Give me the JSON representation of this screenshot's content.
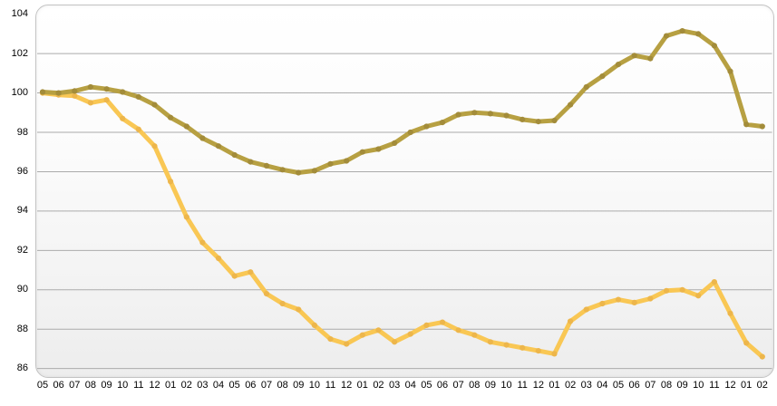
{
  "chart_data": {
    "type": "line",
    "title": "",
    "xlabel": "",
    "ylabel": "",
    "x_labels": [
      "05",
      "06",
      "07",
      "08",
      "09",
      "10",
      "11",
      "12",
      "01",
      "02",
      "03",
      "04",
      "05",
      "06",
      "07",
      "08",
      "09",
      "10",
      "11",
      "12",
      "01",
      "02",
      "03",
      "04",
      "05",
      "06",
      "07",
      "08",
      "09",
      "10",
      "11",
      "12",
      "01",
      "02",
      "03",
      "04",
      "05",
      "06",
      "07",
      "08",
      "09",
      "10",
      "11",
      "12",
      "01",
      "02"
    ],
    "y_axis": {
      "min": 86,
      "max": 104,
      "step": 2
    },
    "ylim": [
      86,
      104
    ],
    "grid": true,
    "legend_position": "none",
    "series": [
      {
        "name": "lower-light-yellow-line",
        "color": "#f9c754",
        "marker_color": "#edb64b",
        "values": [
          100.0,
          99.9,
          99.85,
          99.5,
          99.65,
          98.7,
          98.15,
          97.3,
          95.5,
          93.7,
          92.4,
          91.6,
          90.7,
          90.9,
          89.8,
          89.3,
          89.0,
          88.2,
          87.5,
          87.25,
          87.7,
          87.95,
          87.35,
          87.75,
          88.2,
          88.35,
          87.95,
          87.7,
          87.35,
          87.2,
          87.05,
          86.9,
          86.75,
          88.4,
          89.0,
          89.3,
          89.5,
          89.35,
          89.55,
          89.95,
          90.0,
          89.7,
          90.4,
          88.8,
          87.3,
          86.6
        ]
      },
      {
        "name": "upper-dark-khaki-line",
        "color": "#b7a042",
        "marker_color": "#a38c3a",
        "values": [
          100.05,
          100.0,
          100.1,
          100.3,
          100.2,
          100.05,
          99.8,
          99.4,
          98.75,
          98.3,
          97.7,
          97.3,
          96.85,
          96.5,
          96.3,
          96.1,
          95.95,
          96.05,
          96.4,
          96.55,
          97.0,
          97.15,
          97.45,
          98.0,
          98.3,
          98.5,
          98.9,
          99.0,
          98.95,
          98.85,
          98.65,
          98.55,
          98.6,
          99.4,
          100.3,
          100.85,
          101.45,
          101.9,
          101.75,
          102.9,
          103.15,
          103.0,
          102.4,
          101.1,
          98.4,
          98.3
        ]
      }
    ]
  },
  "style": {
    "panel_border_color": "#c3c3c3",
    "gridline_color": "#ababab",
    "background_top": "#ffffff",
    "background_bottom": "#ededed",
    "text_color": "#000000"
  }
}
